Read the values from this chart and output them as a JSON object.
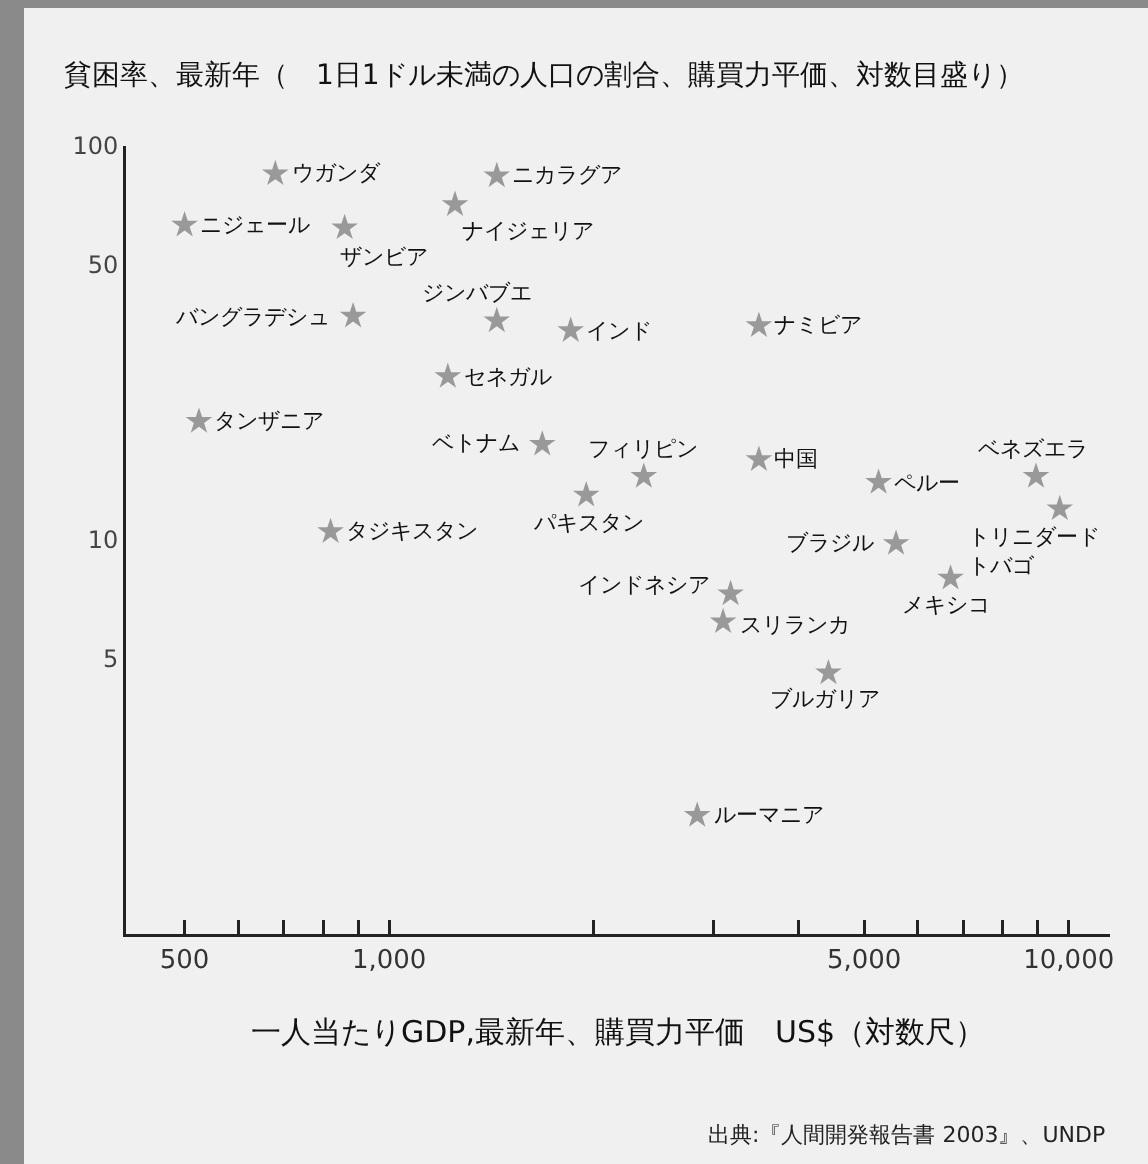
{
  "chart_data": {
    "type": "scatter",
    "title": "貧困率、最新年（　1日1ドル未満の人口の割合、購買力平価、対数目盛り）",
    "xlabel": "一人当たりGDP,最新年、購買力平価　US$（対数尺）",
    "x": [
      680,
      1440,
      1250,
      500,
      860,
      885,
      1440,
      1850,
      3500,
      1220,
      525,
      1680,
      2370,
      3500,
      5250,
      8950,
      1950,
      9700,
      820,
      5570,
      3180,
      6700,
      3100,
      4430,
      2840
    ],
    "values": [
      85,
      84,
      71,
      63,
      62,
      37,
      36,
      34,
      35,
      26,
      20,
      17.5,
      14.5,
      16,
      14,
      14.5,
      13,
      12,
      10.5,
      9.8,
      7.3,
      8,
      6.2,
      4.6,
      2.0
    ],
    "color": "#999999",
    "marker": "star",
    "log": "xy",
    "grid": false,
    "xlim": [
      410,
      11500
    ],
    "ylim": [
      1,
      100
    ],
    "xticks": [
      500,
      {
        "value": 600,
        "label": null
      },
      {
        "value": 700,
        "label": null
      },
      {
        "value": 800,
        "label": null
      },
      {
        "value": 900,
        "label": null
      },
      {
        "value": 1000,
        "label": "1,000"
      },
      {
        "value": 2000,
        "label": null
      },
      {
        "value": 3000,
        "label": null
      },
      {
        "value": 4000,
        "label": null
      },
      {
        "value": 5000,
        "label": "5,000"
      },
      {
        "value": 6000,
        "label": null
      },
      {
        "value": 7000,
        "label": null
      },
      {
        "value": 8000,
        "label": null
      },
      {
        "value": 9000,
        "label": null
      },
      {
        "value": 10000,
        "label": "10,000"
      }
    ],
    "yticks": [
      5,
      10,
      50,
      100
    ],
    "annotations": [
      {
        "text": "ウガンダ",
        "x": 680,
        "y": 85
      },
      {
        "text": "ニカラグア",
        "x": 1440,
        "y": 84
      },
      {
        "text": "ナイジェリア",
        "x": 1250,
        "y": 71
      },
      {
        "text": "ニジェール",
        "x": 500,
        "y": 63
      },
      {
        "text": "ザンビア",
        "x": 860,
        "y": 62
      },
      {
        "text": "バングラデシュ",
        "x": 885,
        "y": 37
      },
      {
        "text": "ジンバブエ",
        "x": 1440,
        "y": 36
      },
      {
        "text": "インド",
        "x": 1850,
        "y": 34
      },
      {
        "text": "ナミビア",
        "x": 3500,
        "y": 35
      },
      {
        "text": "セネガル",
        "x": 1220,
        "y": 26
      },
      {
        "text": "タンザニア",
        "x": 525,
        "y": 20
      },
      {
        "text": "ベトナム",
        "x": 1680,
        "y": 17.5
      },
      {
        "text": "フィリピン",
        "x": 2370,
        "y": 14.5
      },
      {
        "text": "中国",
        "x": 3500,
        "y": 16
      },
      {
        "text": "ペルー",
        "x": 5250,
        "y": 14
      },
      {
        "text": "ベネズエラ",
        "x": 8950,
        "y": 14.5
      },
      {
        "text": "パキスタン",
        "x": 1950,
        "y": 13
      },
      {
        "text": "トリニダードトバゴ",
        "x": 9700,
        "y": 12
      },
      {
        "text": "タジキスタン",
        "x": 820,
        "y": 10.5
      },
      {
        "text": "ブラジル",
        "x": 5570,
        "y": 9.8
      },
      {
        "text": "インドネシア",
        "x": 3180,
        "y": 7.3
      },
      {
        "text": "メキシコ",
        "x": 6700,
        "y": 8
      },
      {
        "text": "スリランカ",
        "x": 3100,
        "y": 6.2
      },
      {
        "text": "ブルガリア",
        "x": 4430,
        "y": 4.6
      },
      {
        "text": "ルーマニア",
        "x": 2840,
        "y": 2.0
      },
      "出典:『人間開発報告書 2003』、UNDP"
    ]
  }
}
